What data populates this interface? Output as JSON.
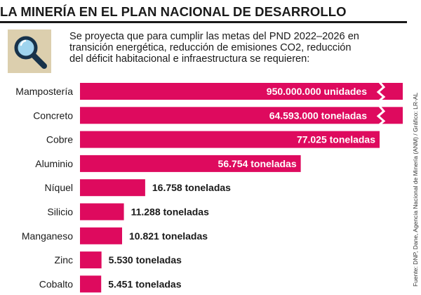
{
  "title": "LA MINERÍA EN EL PLAN NACIONAL DE DESARROLLO",
  "intro": "Se proyecta que para cumplir las metas del PND 2022–2026 en\ntransición energética, reducción de emisiones CO2, reducción\ndel déficit habitacional e infraestructura se requieren:",
  "icon": "magnifying-glass-icon",
  "source": "Fuente: DNP, Dane, Agencia Nacional de Minería (ANM) / Gráfico: LR-AL",
  "colors": {
    "bar": "#de0a5e",
    "icon_bg": "#dccfae",
    "icon_glass": "#17324a",
    "icon_lens": "#9fd4ee"
  },
  "chart_data": {
    "type": "bar",
    "orientation": "horizontal",
    "categories": [
      "Mampostería",
      "Concreto",
      "Cobre",
      "Aluminio",
      "Níquel",
      "Silicio",
      "Manganeso",
      "Zinc",
      "Cobalto"
    ],
    "values": [
      950000000,
      64593000,
      77025,
      56754,
      16758,
      11288,
      10821,
      5530,
      5451
    ],
    "value_labels": [
      "950.000.000 unidades",
      "64.593.000 toneladas",
      "77.025 toneladas",
      "56.754 toneladas",
      "16.758 toneladas",
      "11.288 toneladas",
      "10.821 toneladas",
      "5.530 toneladas",
      "5.451 toneladas"
    ],
    "axis_break": [
      "Mampostería",
      "Concreto"
    ],
    "title": "",
    "xlabel": "",
    "ylabel": ""
  }
}
